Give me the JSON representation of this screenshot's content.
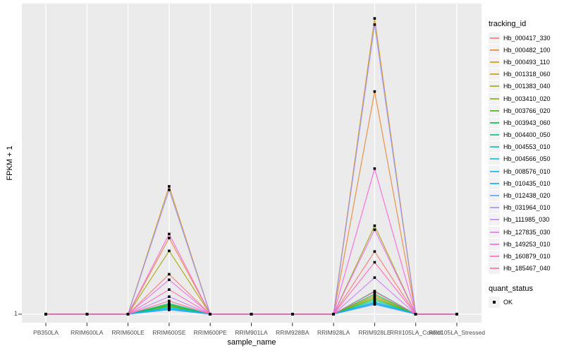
{
  "figure": {
    "y_axis_title": "FPKM + 1",
    "x_axis_title": "sample_name",
    "y_tick_label": "1"
  },
  "legend": {
    "tracking_title": "tracking_id",
    "quant_title": "quant_status",
    "quant_items": [
      {
        "label": "OK",
        "marker": "black-square-point"
      }
    ]
  },
  "style": {
    "panel_bg": "#EBEBEB",
    "gridline": "#FFFFFF",
    "tick_color": "#333333",
    "axis_text": "#4D4D4D",
    "point_color": "#000000",
    "legend_key_bg": "#F2F2F2",
    "line_opacity": 0.8
  },
  "chart_data": {
    "type": "line",
    "title": "",
    "xlabel": "sample_name",
    "ylabel": "FPKM + 1",
    "legend_position": "right",
    "grid": "major gridlines only; gray panel with white grid",
    "y_axis_note": "Only the value 1 (baseline) is labeled on the y axis; series values below are peak heights as fraction of panel height above the FPKM+1 = 1 baseline.",
    "visible_y_ticks": [
      "1"
    ],
    "point_marker": "small black square at every sample for every series (quant_status OK)",
    "categories": [
      "PB350LA",
      "RRIM600LA",
      "RRIM600LE",
      "RRIM600SE",
      "RRIM600PE",
      "RRIM901LA",
      "RRIM928BA",
      "RRIM928LA",
      "RRIM928LE",
      "RRII105LA_Control",
      "RRII105LA_Stressed"
    ],
    "series": [
      {
        "name": "Hb_000417_330",
        "color": "#F8766D",
        "values": [
          0,
          0,
          0,
          0.13,
          0,
          0,
          0,
          0,
          0.204,
          0,
          0
        ]
      },
      {
        "name": "Hb_000482_100",
        "color": "#EA8331",
        "values": [
          0,
          0,
          0,
          0.248,
          0,
          0,
          0,
          0,
          0.725,
          0,
          0
        ]
      },
      {
        "name": "Hb_000493_110",
        "color": "#D89000",
        "values": [
          0,
          0,
          0,
          0.416,
          0,
          0,
          0,
          0,
          0.963,
          0,
          0
        ]
      },
      {
        "name": "Hb_001318_060",
        "color": "#C09B00",
        "values": [
          0,
          0,
          0,
          0.03,
          0,
          0,
          0,
          0,
          0.06,
          0,
          0
        ]
      },
      {
        "name": "Hb_001383_040",
        "color": "#A3A500",
        "values": [
          0,
          0,
          0,
          0.206,
          0,
          0,
          0,
          0,
          0.288,
          0,
          0
        ]
      },
      {
        "name": "Hb_003410_020",
        "color": "#7CAE00",
        "values": [
          0,
          0,
          0,
          0.028,
          0,
          0,
          0,
          0,
          0.055,
          0,
          0
        ]
      },
      {
        "name": "Hb_003766_020",
        "color": "#39B600",
        "values": [
          0,
          0,
          0,
          0.026,
          0,
          0,
          0,
          0,
          0.05,
          0,
          0
        ]
      },
      {
        "name": "Hb_003943_060",
        "color": "#00BB4E",
        "values": [
          0,
          0,
          0,
          0.032,
          0,
          0,
          0,
          0,
          0.065,
          0,
          0
        ]
      },
      {
        "name": "Hb_004400_050",
        "color": "#00C087",
        "values": [
          0,
          0,
          0,
          0.035,
          0,
          0,
          0,
          0,
          0.075,
          0,
          0
        ]
      },
      {
        "name": "Hb_004553_010",
        "color": "#00C0B2",
        "values": [
          0,
          0,
          0,
          0.023,
          0,
          0,
          0,
          0,
          0.045,
          0,
          0
        ]
      },
      {
        "name": "Hb_004566_050",
        "color": "#00BFD3",
        "values": [
          0,
          0,
          0,
          0.021,
          0,
          0,
          0,
          0,
          0.04,
          0,
          0
        ]
      },
      {
        "name": "Hb_008576_010",
        "color": "#00B8E5",
        "values": [
          0,
          0,
          0,
          0.018,
          0,
          0,
          0,
          0,
          0.037,
          0,
          0
        ]
      },
      {
        "name": "Hb_010435_010",
        "color": "#00ACFC",
        "values": [
          0,
          0,
          0,
          0.016,
          0,
          0,
          0,
          0,
          0.034,
          0,
          0
        ]
      },
      {
        "name": "Hb_012438_020",
        "color": "#529EFF",
        "values": [
          0,
          0,
          0,
          0.014,
          0,
          0,
          0,
          0,
          0.032,
          0,
          0
        ]
      },
      {
        "name": "Hb_031964_010",
        "color": "#9590FF",
        "values": [
          0,
          0,
          0,
          0.405,
          0,
          0,
          0,
          0,
          0.943,
          0,
          0
        ]
      },
      {
        "name": "Hb_111985_030",
        "color": "#C77CFF",
        "values": [
          0,
          0,
          0,
          0.057,
          0,
          0,
          0,
          0,
          0.119,
          0,
          0
        ]
      },
      {
        "name": "Hb_127835_030",
        "color": "#E76BF3",
        "values": [
          0,
          0,
          0,
          0.112,
          0,
          0,
          0,
          0,
          0.275,
          0,
          0
        ]
      },
      {
        "name": "Hb_149253_010",
        "color": "#FA62DB",
        "values": [
          0,
          0,
          0,
          0.261,
          0,
          0,
          0,
          0,
          0.474,
          0,
          0
        ]
      },
      {
        "name": "Hb_160879_010",
        "color": "#FF62BC",
        "values": [
          0,
          0,
          0,
          0.08,
          0,
          0,
          0,
          0,
          0.169,
          0,
          0
        ]
      },
      {
        "name": "Hb_185467_040",
        "color": "#FF6A98",
        "values": [
          0,
          0,
          0,
          0.043,
          0,
          0,
          0,
          0,
          0.073,
          0,
          0
        ]
      }
    ]
  }
}
